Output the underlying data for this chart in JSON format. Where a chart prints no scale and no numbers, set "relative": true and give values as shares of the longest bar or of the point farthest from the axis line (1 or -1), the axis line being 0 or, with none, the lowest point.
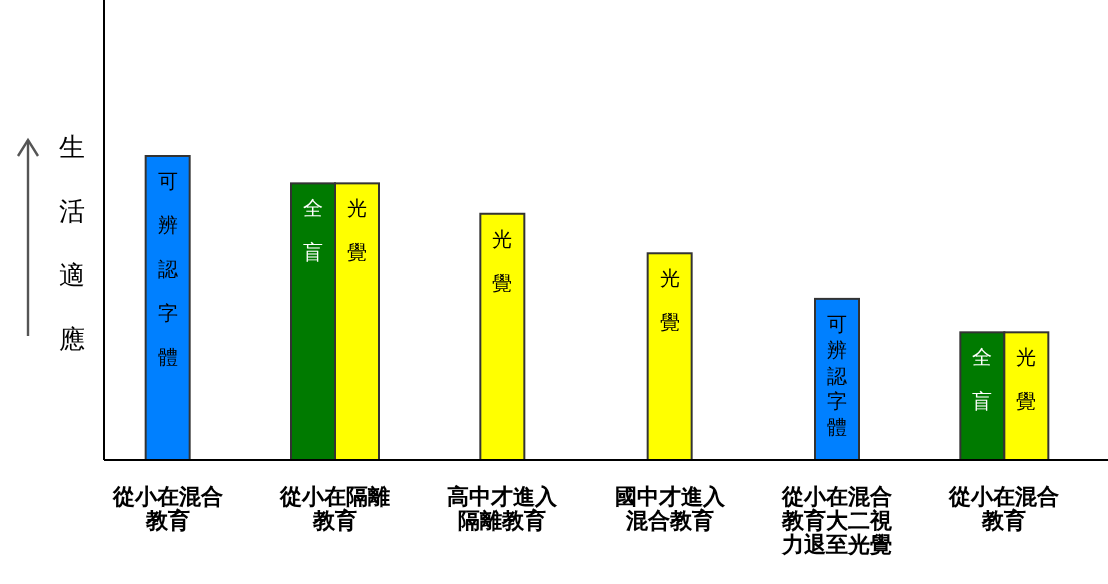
{
  "chart_data": {
    "type": "bar",
    "relative": true,
    "ylabel": "生活適應",
    "categories": [
      "從小在混合教育",
      "從小在隔離教育",
      "高中才進入隔離教育",
      "國中才進入混合教育",
      "從小在混合教育大二視力退至光覺",
      "從小在混合教育"
    ],
    "series": [
      {
        "name": "可辨認字體",
        "color": "#0080ff",
        "values": [
          1,
          null,
          null,
          null,
          0.53,
          null
        ]
      },
      {
        "name": "全盲",
        "color": "#007a00",
        "values": [
          null,
          0.91,
          null,
          null,
          null,
          0.42
        ]
      },
      {
        "name": "光覺",
        "color": "#ffff00",
        "values": [
          null,
          0.91,
          0.81,
          0.68,
          null,
          0.42
        ]
      }
    ]
  }
}
